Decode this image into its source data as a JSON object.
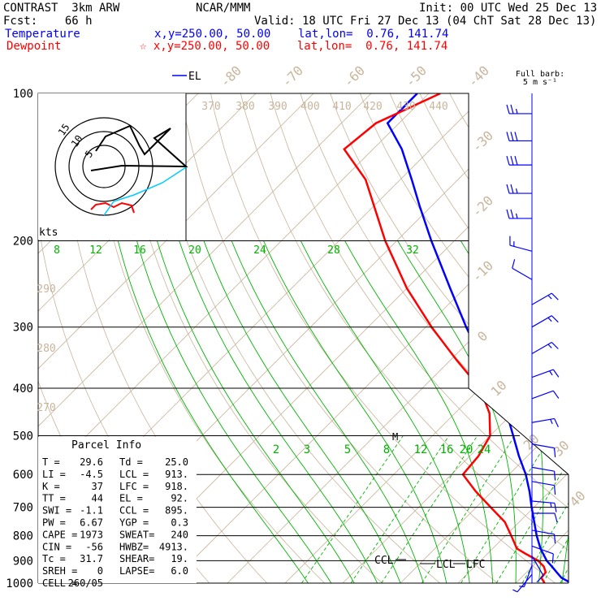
{
  "header": {
    "model": "CONTRAST  3km ARW",
    "center": "NCAR/MMM",
    "init": "Init: 00 UTC Wed 25 Dec 13",
    "fcst": "Fcst:    66 h",
    "valid": "Valid: 18 UTC Fri 27 Dec 13 (04 ChT Sat 28 Dec 13)",
    "temperature_label": "Temperature",
    "temperature_loc": "x,y=250.00, 50.00    lat,lon=  0.76, 141.74",
    "dewpoint_label": "Dewpoint",
    "dewpoint_loc": "☆ x,y=250.00, 50.00    lat,lon=  0.76, 141.74"
  },
  "colors": {
    "temperature": "#0000ff",
    "dewpoint": "#ff0000",
    "isotherm": "#c8b49a",
    "dry_adiabat": "#c8b49a",
    "moist_adiabat": "#00b400",
    "mixing_ratio": "#00b400",
    "isobar": "#000000",
    "hodo_ring": "#000000",
    "hodo_low": "#ff0000",
    "hodo_mid": "#00ccff",
    "hodo_high": "#000000",
    "barb": "#0000ff"
  },
  "chart_data": {
    "type": "skew-t log-p sounding",
    "pressure_levels": [
      100,
      200,
      300,
      400,
      500,
      600,
      700,
      800,
      900,
      1000
    ],
    "isotherm_labels": [
      -80,
      -70,
      -60,
      -50,
      -40,
      -30,
      -20,
      -10,
      0,
      10,
      20,
      30,
      40
    ],
    "theta_labels": [
      370,
      380,
      390,
      400,
      410,
      420,
      430,
      440,
      290,
      280,
      270
    ],
    "theta_e_labels": [
      8,
      12,
      16,
      20,
      24,
      28,
      32
    ],
    "mixing_ratio_labels": [
      2,
      3,
      5,
      8,
      12,
      16,
      20,
      24
    ],
    "series": [
      {
        "name": "Temperature",
        "p": [
          1000,
          975,
          950,
          925,
          900,
          850,
          800,
          750,
          700,
          650,
          600,
          550,
          500,
          450,
          400,
          350,
          300,
          250,
          200,
          170,
          150,
          130,
          115,
          100
        ],
        "T": [
          29.6,
          27.0,
          25.2,
          23.4,
          21.5,
          18.3,
          15.4,
          12.6,
          9.6,
          6.5,
          2.9,
          -1.5,
          -6.0,
          -11.0,
          -17.0,
          -24.5,
          -33.0,
          -42.5,
          -54.0,
          -62.0,
          -68.0,
          -75.0,
          -82.0,
          -82.0
        ]
      },
      {
        "name": "Dewpoint",
        "p": [
          1000,
          975,
          950,
          925,
          900,
          870,
          850,
          800,
          750,
          700,
          650,
          600,
          550,
          500,
          450,
          400,
          350,
          300,
          250,
          200,
          150,
          130,
          115,
          100
        ],
        "Td": [
          25.0,
          23.5,
          23.3,
          22.0,
          20.0,
          16.5,
          14.2,
          11.0,
          7.5,
          2.5,
          -2.8,
          -8.0,
          -8.5,
          -10.0,
          -14.0,
          -20.0,
          -29.0,
          -39.0,
          -50.0,
          -62.0,
          -76.0,
          -85.0,
          -84.0,
          -78.0
        ]
      }
    ],
    "markers": [
      "EL",
      "M",
      "CCL",
      "LCL",
      "LFC"
    ],
    "parcel_info": {
      "title": "Parcel Info",
      "rows": [
        [
          "T  =",
          "29.6",
          "Td =",
          "25.0"
        ],
        [
          "LI =",
          "-4.5",
          "LCL =",
          "913."
        ],
        [
          "K  =",
          "37",
          "LFC =",
          "918."
        ],
        [
          "TT =",
          "44",
          "EL =",
          "92."
        ],
        [
          "SWI =",
          "-1.1",
          "CCL =",
          "895."
        ],
        [
          "PW =",
          "6.67",
          "YGP =",
          "0.3"
        ],
        [
          "CAPE =",
          "1973",
          "SWEAT=",
          "240"
        ],
        [
          "CIN =",
          "-56",
          "HWBZ=",
          "4913."
        ],
        [
          "Tc =",
          "31.7",
          "SHEAR=",
          "19."
        ],
        [
          "SREH =",
          "0",
          "LAPSE=",
          "6.0"
        ],
        [
          "CELL =",
          "260/05",
          "",
          ""
        ]
      ]
    },
    "hodograph": {
      "rings": [
        "5",
        "10",
        "15"
      ],
      "unit": "kts"
    },
    "barbs": {
      "title": "Full barb:",
      "unit": "5 m s⁻¹",
      "levels": [
        {
          "p": 110,
          "dir": 270,
          "full": 2,
          "half": 1
        },
        {
          "p": 125,
          "dir": 270,
          "full": 3,
          "half": 0
        },
        {
          "p": 140,
          "dir": 270,
          "full": 3,
          "half": 0
        },
        {
          "p": 160,
          "dir": 270,
          "full": 2,
          "half": 1
        },
        {
          "p": 180,
          "dir": 270,
          "full": 2,
          "half": 1
        },
        {
          "p": 210,
          "dir": 285,
          "full": 1,
          "half": 1
        },
        {
          "p": 240,
          "dir": 300,
          "full": 1,
          "half": 0
        },
        {
          "p": 270,
          "dir": 60,
          "full": 1,
          "half": 1
        },
        {
          "p": 300,
          "dir": 60,
          "full": 1,
          "half": 1
        },
        {
          "p": 340,
          "dir": 60,
          "full": 1,
          "half": 1
        },
        {
          "p": 380,
          "dir": 70,
          "full": 1,
          "half": 1
        },
        {
          "p": 420,
          "dir": 70,
          "full": 1,
          "half": 0
        },
        {
          "p": 470,
          "dir": 80,
          "full": 1,
          "half": 1
        },
        {
          "p": 520,
          "dir": 100,
          "full": 1,
          "half": 0
        },
        {
          "p": 580,
          "dir": 100,
          "full": 1,
          "half": 0
        },
        {
          "p": 620,
          "dir": 100,
          "full": 1,
          "half": 0
        },
        {
          "p": 680,
          "dir": 95,
          "full": 1,
          "half": 1
        },
        {
          "p": 720,
          "dir": 90,
          "full": 1,
          "half": 0
        },
        {
          "p": 780,
          "dir": 100,
          "full": 1,
          "half": 0
        },
        {
          "p": 840,
          "dir": 110,
          "full": 1,
          "half": 0
        },
        {
          "p": 880,
          "dir": 150,
          "full": 1,
          "half": 0
        },
        {
          "p": 920,
          "dir": 200,
          "full": 0,
          "half": 1
        },
        {
          "p": 960,
          "dir": 220,
          "full": 0,
          "half": 1
        }
      ]
    }
  }
}
